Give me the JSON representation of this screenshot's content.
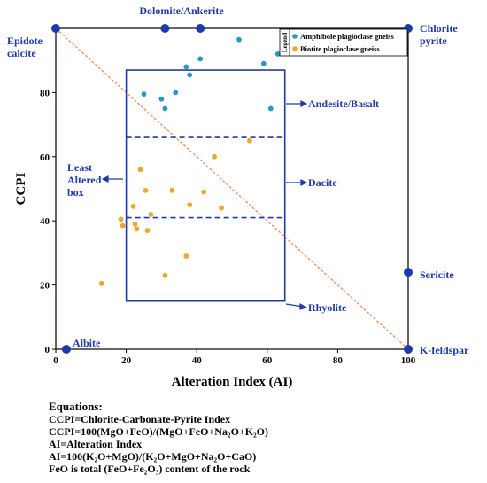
{
  "chart_data": {
    "type": "scatter",
    "xlabel": "Alteration Index (AI)",
    "ylabel": "CCPI",
    "xlim": [
      0,
      100
    ],
    "ylim": [
      0,
      100
    ],
    "x_ticks": [
      "0",
      "20",
      "40",
      "60",
      "80",
      "100"
    ],
    "y_ticks": [
      "0",
      "20",
      "40",
      "60",
      "80"
    ],
    "grid": false,
    "legend": {
      "title": "Legend",
      "placement": "top-right",
      "entries": [
        "Amphibole plagioclase gneiss",
        "Biotite plagioclase gneiss"
      ]
    },
    "series": [
      {
        "name": "Amphibole plagioclase gneiss",
        "color": "#2b97c9",
        "points": [
          [
            25,
            79.5
          ],
          [
            30,
            78
          ],
          [
            31,
            75
          ],
          [
            34,
            80
          ],
          [
            37,
            88
          ],
          [
            38,
            85.5
          ],
          [
            41,
            90.5
          ],
          [
            52,
            96.5
          ],
          [
            59,
            89
          ],
          [
            61,
            75
          ],
          [
            63,
            92
          ]
        ]
      },
      {
        "name": "Biotite plagioclase gneiss",
        "color": "#f0a62a",
        "points": [
          [
            13,
            20.5
          ],
          [
            18.5,
            40.5
          ],
          [
            19,
            38.5
          ],
          [
            22,
            44.5
          ],
          [
            22.5,
            39
          ],
          [
            23,
            37.5
          ],
          [
            24,
            56
          ],
          [
            25.5,
            49.5
          ],
          [
            26,
            37
          ],
          [
            27,
            42
          ],
          [
            31,
            23
          ],
          [
            33,
            49.5
          ],
          [
            37,
            29
          ],
          [
            38,
            45
          ],
          [
            42,
            49
          ],
          [
            45,
            60
          ],
          [
            47,
            44
          ],
          [
            55,
            65
          ]
        ]
      }
    ],
    "diagonal_line": {
      "from": [
        0,
        100
      ],
      "to": [
        100,
        0
      ],
      "color": "#f08a5d"
    },
    "least_altered_box": {
      "x": [
        20,
        65
      ],
      "y": [
        15,
        87
      ]
    },
    "dashed_lines": [
      66,
      41
    ],
    "end_members": [
      {
        "label": "Dolomite/Ankerite",
        "x": [
          31,
          41
        ],
        "y": 100
      },
      {
        "label": "Epidote calcite",
        "x": 0,
        "y": 100
      },
      {
        "label": "Chlorite pyrite",
        "x": 100,
        "y": 100
      },
      {
        "label": "Sericite",
        "x": 100,
        "y": 24
      },
      {
        "label": "K-feldspar",
        "x": 100,
        "y": 0
      },
      {
        "label": "Albite",
        "x": 3,
        "y": 0
      }
    ],
    "annotations": {
      "andesite": "Andesite/Basalt",
      "dacite": "Dacite",
      "rhyolite": "Rhyolite",
      "least_altered": [
        "Least",
        "Altered",
        "box"
      ],
      "epidote": [
        "Epidote",
        "calcite"
      ],
      "chlorite": [
        "Chlorite",
        "pyrite"
      ],
      "dolomite": "Dolomite/Ankerite",
      "sericite": "Sericite",
      "kfeldspar": "K-feldspar",
      "albite": "Albite"
    },
    "colors": {
      "annotation": "#1f3aa8",
      "box": "#1f3aa8"
    }
  },
  "equations": {
    "title": "Equations:",
    "lines": [
      "CCPI=Chlorite-Carbonate-Pyrite Index",
      "CCPI=100(MgO+FeO)/(MgO+FeO+Na₂O+K₂O)",
      "AI=Alteration Index",
      "AI=100(K₂O+MgO)/(K₂O+MgO+Na₂O+CaO)",
      "FeO is total (FeO+Fe₂O₃) content of the rock"
    ]
  }
}
